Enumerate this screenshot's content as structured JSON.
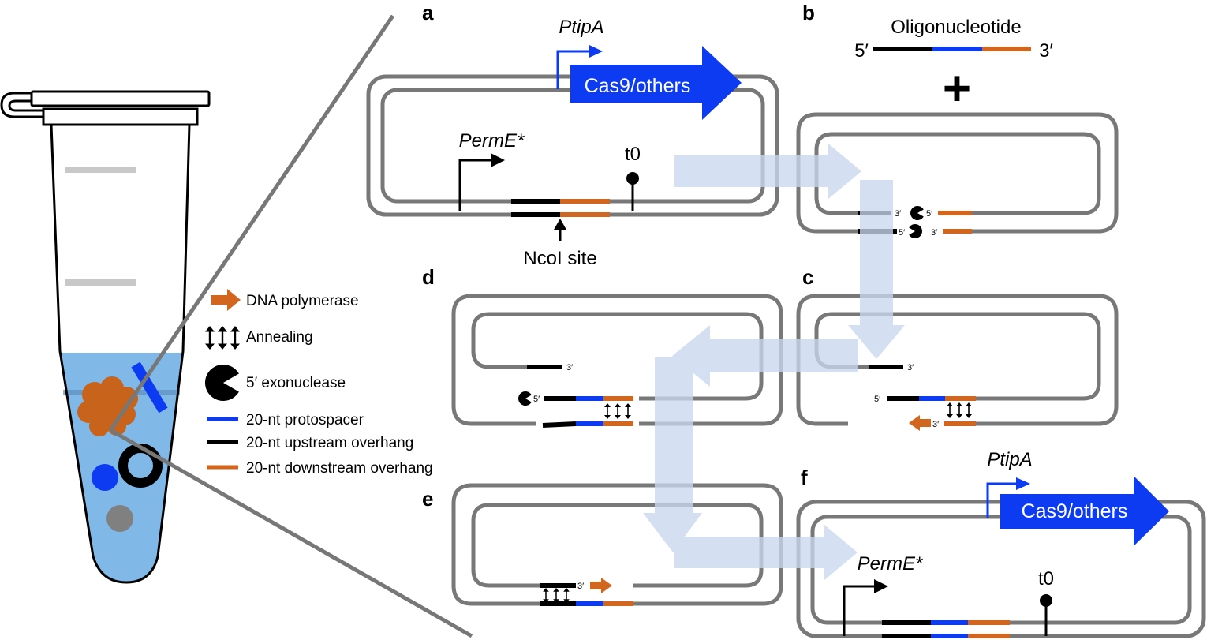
{
  "colors": {
    "blue": "#0d3bf2",
    "orange": "#d2661e",
    "cell_orange": "#c8631c",
    "liquid": "#80b8e8",
    "flow_arrow": "#c9d8ee",
    "plasmid_gray": "#787878"
  },
  "panel_letters": {
    "a": "a",
    "b": "b",
    "c": "c",
    "d": "d",
    "e": "e",
    "f": "f"
  },
  "panel_a": {
    "promoter_top": "PtipA",
    "gene": "Cas9/others",
    "promoter_bottom": "PermE*",
    "terminator": "t0",
    "site": "NcoI site"
  },
  "panel_b": {
    "oligo_title": "Oligonucleotide",
    "oligo_five": "5′",
    "oligo_three": "3′",
    "plus": "+"
  },
  "panel_f": {
    "promoter_top": "PtipA",
    "gene": "Cas9/others",
    "promoter_bottom": "PermE*",
    "terminator": "t0"
  },
  "strand_ends": {
    "five": "5′",
    "three": "3′"
  },
  "legend": {
    "items": [
      "DNA polymerase",
      "Annealing",
      "5′ exonuclease",
      "20-nt protospacer",
      "20-nt upstream overhang",
      "20-nt downstream overhang"
    ]
  }
}
